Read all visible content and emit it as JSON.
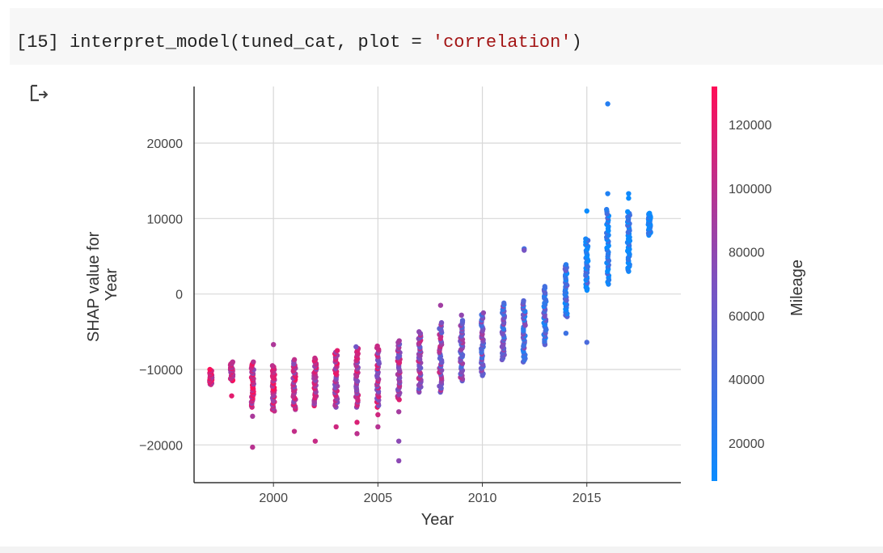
{
  "cell": {
    "prompt": "[15]",
    "code_prefix": "interpret_model(tuned_cat, plot = ",
    "code_string": "'correlation'",
    "code_suffix": ")"
  },
  "output_icon": "output-arrow-icon",
  "chart_data": {
    "type": "scatter",
    "title": "",
    "xlabel": "Year",
    "ylabel": "SHAP value for\nYear",
    "xlim": [
      1996.2,
      2019.5
    ],
    "ylim": [
      -25000,
      27500
    ],
    "x_ticks": [
      2000,
      2005,
      2010,
      2015
    ],
    "y_ticks": [
      -20000,
      -10000,
      0,
      10000,
      20000
    ],
    "x_tick_labels": [
      "2000",
      "2005",
      "2010",
      "2015"
    ],
    "y_tick_labels": [
      "−20000",
      "−10000",
      "0",
      "10000",
      "20000"
    ],
    "grid": true,
    "colorbar": {
      "label": "Mileage",
      "range": [
        8000,
        132000
      ],
      "ticks": [
        20000,
        40000,
        60000,
        80000,
        100000,
        120000
      ],
      "tick_labels": [
        "20000",
        "40000",
        "60000",
        "80000",
        "100000",
        "120000"
      ],
      "low_color": "#1e88e5",
      "mid_color": "#7b52c1",
      "high_color": "#ff0d57"
    },
    "groups": [
      {
        "x": 1997,
        "min": -12000,
        "max": -10000,
        "extra": [],
        "mileage": 115000
      },
      {
        "x": 1998,
        "min": -11500,
        "max": -9000,
        "extra": [
          -13500
        ],
        "mileage": 110000
      },
      {
        "x": 1999,
        "min": -15000,
        "max": -9000,
        "extra": [
          -16200,
          -20300
        ],
        "mileage": 105000
      },
      {
        "x": 2000,
        "min": -15500,
        "max": -9500,
        "extra": [
          -6700
        ],
        "mileage": 108000
      },
      {
        "x": 2001,
        "min": -15300,
        "max": -8700,
        "extra": [
          -18200
        ],
        "mileage": 102000
      },
      {
        "x": 2002,
        "min": -14800,
        "max": -8500,
        "extra": [
          -19500
        ],
        "mileage": 100000
      },
      {
        "x": 2003,
        "min": -15000,
        "max": -7500,
        "extra": [
          -17600
        ],
        "mileage": 98000
      },
      {
        "x": 2004,
        "min": -15000,
        "max": -7000,
        "extra": [
          -18500,
          -17000
        ],
        "mileage": 95000
      },
      {
        "x": 2005,
        "min": -15000,
        "max": -6900,
        "extra": [
          -16000,
          -17600
        ],
        "mileage": 92000
      },
      {
        "x": 2006,
        "min": -14000,
        "max": -6200,
        "extra": [
          -15600,
          -19500,
          -22100
        ],
        "mileage": 88000
      },
      {
        "x": 2007,
        "min": -13000,
        "max": -5000,
        "extra": [],
        "mileage": 82000
      },
      {
        "x": 2008,
        "min": -13000,
        "max": -3800,
        "extra": [
          -1500
        ],
        "mileage": 78000
      },
      {
        "x": 2009,
        "min": -11500,
        "max": -3500,
        "extra": [
          -2800
        ],
        "mileage": 70000
      },
      {
        "x": 2010,
        "min": -10800,
        "max": -2500,
        "extra": [],
        "mileage": 62000
      },
      {
        "x": 2011,
        "min": -8700,
        "max": -1200,
        "extra": [],
        "mileage": 55000
      },
      {
        "x": 2012,
        "min": -9000,
        "max": -900,
        "extra": [
          6000,
          5800
        ],
        "mileage": 50000
      },
      {
        "x": 2013,
        "min": -6700,
        "max": 1000,
        "extra": [],
        "mileage": 42000
      },
      {
        "x": 2014,
        "min": -3000,
        "max": 3900,
        "extra": [
          -5200
        ],
        "mileage": 32000
      },
      {
        "x": 2015,
        "min": 500,
        "max": 7300,
        "extra": [
          11000,
          -6400
        ],
        "mileage": 25000
      },
      {
        "x": 2016,
        "min": 1300,
        "max": 11200,
        "extra": [
          13300,
          25200
        ],
        "mileage": 18000
      },
      {
        "x": 2017,
        "min": 3000,
        "max": 10900,
        "extra": [
          13300,
          12700
        ],
        "mileage": 15000
      },
      {
        "x": 2018,
        "min": 7800,
        "max": 10700,
        "extra": [],
        "mileage": 10000
      }
    ]
  }
}
